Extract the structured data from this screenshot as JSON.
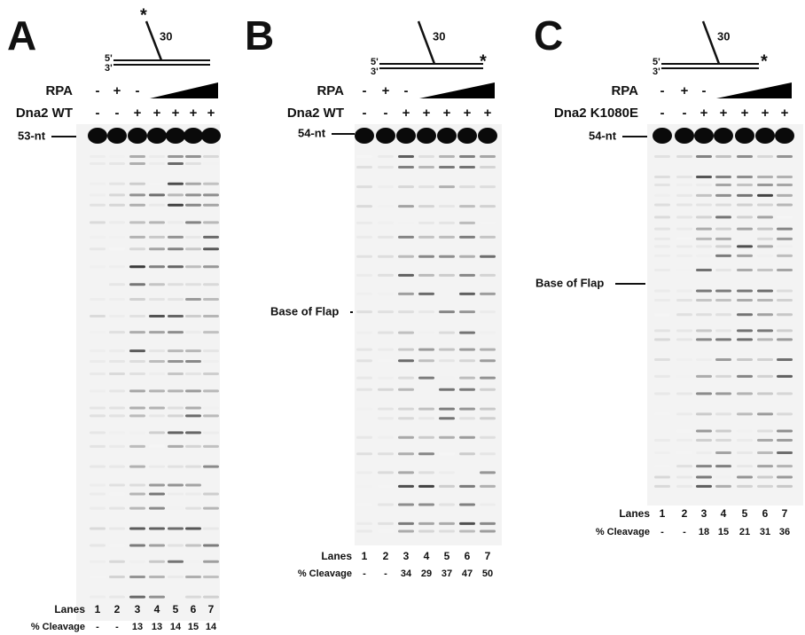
{
  "panels": [
    {
      "label": "A",
      "diagram": {
        "star": "*",
        "flap_length": "30",
        "five_prime": "5'",
        "three_prime": "3'"
      },
      "rows": [
        {
          "name": "RPA",
          "marks": [
            "-",
            "+",
            "-"
          ]
        },
        {
          "name": "Dna2 WT",
          "marks": [
            "-",
            "-",
            "+",
            "+",
            "+",
            "+",
            "+"
          ]
        }
      ],
      "marker": "53-nt",
      "lanes": {
        "label": "Lanes",
        "values": [
          "1",
          "2",
          "3",
          "4",
          "5",
          "6",
          "7"
        ]
      },
      "cleavage": {
        "label": "% Cleavage",
        "values": [
          "-",
          "-",
          "13",
          "13",
          "14",
          "15",
          "14"
        ]
      }
    },
    {
      "label": "B",
      "diagram": {
        "star": "*",
        "flap_length": "30",
        "five_prime": "5'",
        "three_prime": "3'"
      },
      "rows": [
        {
          "name": "RPA",
          "marks": [
            "-",
            "+",
            "-"
          ]
        },
        {
          "name": "Dna2 WT",
          "marks": [
            "-",
            "-",
            "+",
            "+",
            "+",
            "+",
            "+"
          ]
        }
      ],
      "marker": "54-nt",
      "flap_base": "Base of Flap",
      "lanes": {
        "label": "Lanes",
        "values": [
          "1",
          "2",
          "3",
          "4",
          "5",
          "6",
          "7"
        ]
      },
      "cleavage": {
        "label": "% Cleavage",
        "values": [
          "-",
          "-",
          "34",
          "29",
          "37",
          "47",
          "50"
        ]
      }
    },
    {
      "label": "C",
      "diagram": {
        "star": "*",
        "flap_length": "30",
        "five_prime": "5'",
        "three_prime": "3'"
      },
      "rows": [
        {
          "name": "RPA",
          "marks": [
            "-",
            "+",
            "-"
          ]
        },
        {
          "name": "Dna2 K1080E",
          "marks": [
            "-",
            "-",
            "+",
            "+",
            "+",
            "+",
            "+"
          ]
        }
      ],
      "marker": "54-nt",
      "flap_base": "Base of Flap",
      "lanes": {
        "label": "Lanes",
        "values": [
          "1",
          "2",
          "3",
          "4",
          "5",
          "6",
          "7"
        ]
      },
      "cleavage": {
        "label": "% Cleavage",
        "values": [
          "-",
          "-",
          "18",
          "15",
          "21",
          "31",
          "36"
        ]
      }
    }
  ]
}
